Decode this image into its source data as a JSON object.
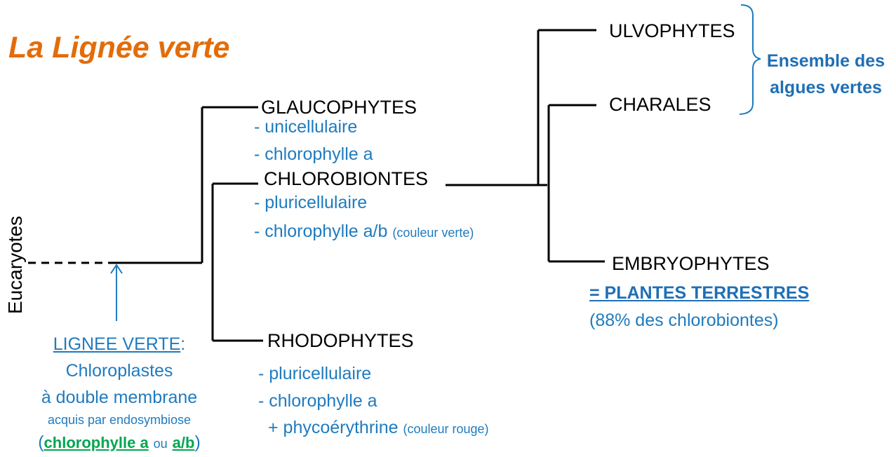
{
  "title": "La Lignée verte",
  "root_label": "Eucaryotes",
  "taxa": {
    "glaucophytes": "GLAUCOPHYTES",
    "chlorobiontes": "CHLOROBIONTES",
    "rhodophytes": "RHODOPHYTES",
    "ulvophytes": "ULVOPHYTES",
    "charales": "CHARALES",
    "embryophytes": "EMBRYOPHYTES"
  },
  "glaucophytes_traits": [
    "- unicellulaire",
    "- chlorophylle a"
  ],
  "chlorobiontes_traits": {
    "line1": "- pluricellulaire",
    "line2": "- chlorophylle a/b",
    "line2_note": "(couleur verte)"
  },
  "rhodophytes_traits": {
    "line1": "- pluricellulaire",
    "line2": "- chlorophylle a",
    "line3": "+ phycoérythrine",
    "line3_note": "(couleur rouge)"
  },
  "embryophytes_notes": {
    "equals": "= PLANTES TERRESTRES",
    "percent": "(88% des chlorobiontes)"
  },
  "algae_group": {
    "line1": "Ensemble des",
    "line2": "algues vertes"
  },
  "lignee_verte": {
    "heading": "LIGNEE VERTE",
    "colon": ":",
    "line2": "Chloroplastes",
    "line3": "à double membrane",
    "line4": "acquis par endosymbiose",
    "open_paren": "(",
    "chl_a": "chlorophylle a",
    "ou": "ou",
    "chl_ab": "a/b",
    "close_paren": ")"
  },
  "colors": {
    "title": "#e36c09",
    "trait_blue": "#1f7bbf",
    "highlight_green": "#00a651",
    "lines": "#000000"
  }
}
